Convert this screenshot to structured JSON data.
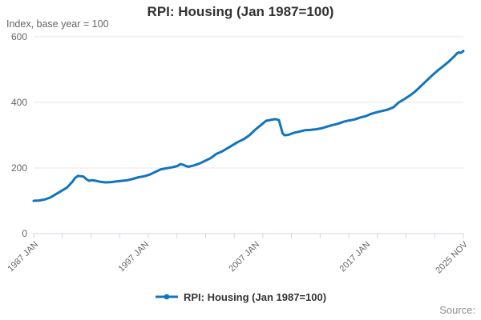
{
  "header": {
    "title": "RPI: Housing (Jan 1987=100)",
    "subtitle": "Index, base year = 100"
  },
  "footer": {
    "source_label": "Source:"
  },
  "legend": {
    "items": [
      {
        "label": "RPI: Housing (Jan 1987=100)",
        "marker": "line-dot-icon"
      }
    ]
  },
  "colors": {
    "line": "#1274bc",
    "axis": "#ccd6eb",
    "grid": "#e6e6e6",
    "text": "#666666",
    "title_text": "#333333",
    "source_text": "#8c8c8c"
  },
  "chart_data": {
    "type": "line",
    "title": "RPI: Housing (Jan 1987=100)",
    "subtitle": "Index, base year = 100",
    "xlabel": "",
    "ylabel": "Index, base year = 100",
    "ylim": [
      0,
      600
    ],
    "yticks": [
      0,
      200,
      400,
      600
    ],
    "grid": "horizontal",
    "legend_position": "bottom",
    "x_start": "1987 JAN",
    "x_end": "2025 NOV",
    "x_total_months": 466,
    "x_minor_tick_intervals": 15,
    "xtick_labels": [
      {
        "month": 0,
        "label": "1987 JAN"
      },
      {
        "month": 120,
        "label": "1997 JAN"
      },
      {
        "month": 240,
        "label": "2007 JAN"
      },
      {
        "month": 360,
        "label": "2017 JAN"
      },
      {
        "month": 466,
        "label": "2025 NOV"
      }
    ],
    "series": [
      {
        "name": "RPI: Housing (Jan 1987=100)",
        "points": [
          [
            0,
            100
          ],
          [
            6,
            101
          ],
          [
            12,
            104
          ],
          [
            18,
            110
          ],
          [
            24,
            120
          ],
          [
            30,
            130
          ],
          [
            36,
            140
          ],
          [
            42,
            158
          ],
          [
            45,
            170
          ],
          [
            48,
            176
          ],
          [
            51,
            175
          ],
          [
            54,
            174
          ],
          [
            57,
            166
          ],
          [
            60,
            161
          ],
          [
            63,
            163
          ],
          [
            66,
            162
          ],
          [
            69,
            160
          ],
          [
            72,
            158
          ],
          [
            78,
            156
          ],
          [
            84,
            157
          ],
          [
            90,
            159
          ],
          [
            96,
            161
          ],
          [
            102,
            163
          ],
          [
            108,
            167
          ],
          [
            114,
            172
          ],
          [
            120,
            175
          ],
          [
            126,
            180
          ],
          [
            132,
            188
          ],
          [
            138,
            196
          ],
          [
            144,
            199
          ],
          [
            150,
            202
          ],
          [
            156,
            206
          ],
          [
            159,
            212
          ],
          [
            162,
            210
          ],
          [
            165,
            206
          ],
          [
            168,
            204
          ],
          [
            174,
            208
          ],
          [
            180,
            214
          ],
          [
            186,
            222
          ],
          [
            192,
            230
          ],
          [
            198,
            243
          ],
          [
            204,
            250
          ],
          [
            210,
            260
          ],
          [
            216,
            270
          ],
          [
            222,
            280
          ],
          [
            228,
            288
          ],
          [
            234,
            300
          ],
          [
            240,
            316
          ],
          [
            246,
            330
          ],
          [
            252,
            344
          ],
          [
            256,
            346
          ],
          [
            262,
            349
          ],
          [
            266,
            346
          ],
          [
            268,
            325
          ],
          [
            270,
            305
          ],
          [
            272,
            300
          ],
          [
            276,
            301
          ],
          [
            282,
            307
          ],
          [
            288,
            311
          ],
          [
            294,
            315
          ],
          [
            300,
            316
          ],
          [
            306,
            318
          ],
          [
            312,
            321
          ],
          [
            318,
            326
          ],
          [
            324,
            331
          ],
          [
            330,
            335
          ],
          [
            336,
            341
          ],
          [
            342,
            345
          ],
          [
            348,
            348
          ],
          [
            354,
            354
          ],
          [
            360,
            358
          ],
          [
            366,
            365
          ],
          [
            372,
            370
          ],
          [
            378,
            374
          ],
          [
            384,
            378
          ],
          [
            390,
            385
          ],
          [
            396,
            400
          ],
          [
            402,
            410
          ],
          [
            408,
            421
          ],
          [
            414,
            434
          ],
          [
            420,
            450
          ],
          [
            426,
            466
          ],
          [
            432,
            482
          ],
          [
            438,
            497
          ],
          [
            444,
            510
          ],
          [
            450,
            524
          ],
          [
            456,
            540
          ],
          [
            459,
            549
          ],
          [
            461,
            553
          ],
          [
            462,
            551
          ],
          [
            464,
            552
          ],
          [
            466,
            557
          ]
        ]
      }
    ]
  }
}
